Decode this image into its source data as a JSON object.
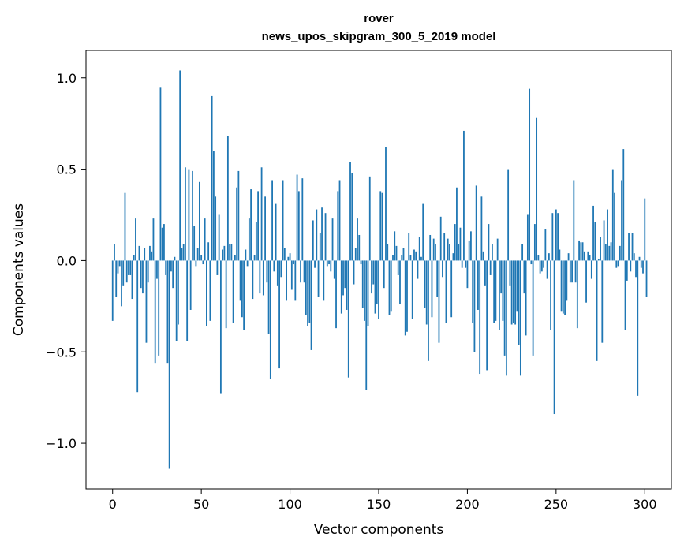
{
  "chart_data": {
    "type": "bar",
    "title_line1": "rover",
    "title_line2": "news_upos_skipgram_300_5_2019 model",
    "xlabel": "Vector components",
    "ylabel": "Components values",
    "xlim": [
      -15,
      315
    ],
    "ylim": [
      -1.25,
      1.15
    ],
    "x_ticks": [
      0,
      50,
      100,
      150,
      200,
      250,
      300
    ],
    "x_tick_labels": [
      "0",
      "50",
      "100",
      "150",
      "200",
      "250",
      "300"
    ],
    "y_ticks": [
      -1.0,
      -0.5,
      0.0,
      0.5,
      1.0
    ],
    "y_tick_labels": [
      "−1.0",
      "−0.5",
      "0.0",
      "0.5",
      "1.0"
    ],
    "bar_color": "#1f77b4",
    "grid": false,
    "legend": "none",
    "values": [
      -0.33,
      0.09,
      -0.2,
      -0.07,
      -0.03,
      -0.25,
      -0.14,
      0.37,
      -0.12,
      -0.08,
      -0.08,
      -0.21,
      0.03,
      0.23,
      -0.72,
      0.08,
      -0.15,
      -0.18,
      0.07,
      -0.45,
      -0.12,
      0.08,
      0.05,
      0.23,
      -0.56,
      -0.1,
      -0.52,
      0.95,
      0.18,
      0.2,
      -0.08,
      -0.56,
      -1.14,
      -0.06,
      -0.15,
      0.02,
      -0.44,
      -0.35,
      1.04,
      0.07,
      0.09,
      0.51,
      -0.44,
      0.5,
      -0.27,
      0.49,
      0.19,
      -0.03,
      0.07,
      0.43,
      0.03,
      -0.02,
      0.23,
      -0.36,
      0.1,
      -0.33,
      0.9,
      0.6,
      0.35,
      -0.08,
      0.25,
      -0.73,
      0.06,
      0.08,
      -0.37,
      0.68,
      0.09,
      0.09,
      -0.34,
      0.03,
      0.4,
      0.49,
      -0.22,
      -0.31,
      -0.38,
      0.06,
      -0.03,
      0.23,
      0.39,
      -0.21,
      0.03,
      0.21,
      0.38,
      -0.18,
      0.51,
      -0.19,
      0.35,
      -0.12,
      -0.4,
      -0.65,
      0.44,
      -0.06,
      0.31,
      -0.14,
      -0.59,
      -0.09,
      0.44,
      0.07,
      -0.22,
      0.02,
      0.04,
      -0.16,
      -0.02,
      -0.22,
      0.47,
      0.38,
      -0.12,
      0.45,
      -0.12,
      -0.3,
      -0.36,
      -0.34,
      -0.49,
      0.22,
      -0.04,
      0.28,
      -0.2,
      0.15,
      0.29,
      -0.22,
      0.26,
      -0.03,
      -0.02,
      -0.06,
      0.23,
      -0.1,
      -0.37,
      0.38,
      0.44,
      -0.29,
      -0.19,
      -0.15,
      -0.27,
      -0.64,
      0.54,
      0.48,
      -0.13,
      0.07,
      0.23,
      0.14,
      -0.02,
      -0.26,
      -0.33,
      -0.71,
      -0.36,
      0.46,
      -0.18,
      -0.13,
      -0.29,
      -0.24,
      -0.32,
      0.38,
      0.37,
      -0.15,
      0.62,
      0.09,
      -0.3,
      -0.28,
      0.03,
      0.16,
      0.08,
      -0.08,
      -0.24,
      0.03,
      0.07,
      -0.41,
      -0.39,
      0.15,
      0.03,
      -0.32,
      0.06,
      0.05,
      -0.1,
      0.13,
      0.02,
      0.31,
      -0.26,
      -0.35,
      -0.55,
      0.14,
      -0.31,
      0.12,
      0.09,
      -0.2,
      -0.45,
      0.24,
      -0.09,
      0.15,
      -0.34,
      0.12,
      0.09,
      -0.31,
      0.04,
      0.2,
      0.4,
      0.09,
      0.18,
      -0.04,
      0.71,
      -0.04,
      -0.15,
      0.11,
      0.16,
      -0.34,
      -0.5,
      0.41,
      -0.27,
      -0.62,
      0.35,
      0.05,
      -0.14,
      -0.6,
      0.2,
      -0.08,
      0.09,
      -0.34,
      -0.33,
      0.12,
      -0.38,
      -0.18,
      -0.33,
      -0.52,
      -0.63,
      0.5,
      -0.14,
      -0.35,
      -0.34,
      -0.35,
      -0.28,
      -0.46,
      -0.63,
      0.09,
      -0.18,
      -0.41,
      0.25,
      0.94,
      -0.02,
      -0.52,
      0.2,
      0.78,
      0.03,
      -0.07,
      -0.06,
      -0.04,
      0.17,
      -0.1,
      0.04,
      -0.38,
      0.26,
      -0.84,
      0.28,
      0.26,
      0.06,
      -0.28,
      -0.29,
      -0.3,
      -0.22,
      0.04,
      -0.12,
      -0.12,
      0.44,
      -0.12,
      -0.37,
      0.11,
      0.1,
      0.1,
      0.05,
      -0.23,
      0.05,
      0.03,
      -0.1,
      0.3,
      0.21,
      -0.55,
      0.01,
      0.13,
      -0.45,
      0.22,
      0.09,
      0.28,
      0.08,
      0.1,
      0.5,
      0.37,
      -0.04,
      -0.03,
      0.08,
      0.44,
      0.61,
      -0.38,
      -0.11,
      0.15,
      -0.06,
      0.15,
      0.04,
      -0.09,
      -0.74,
      0.02,
      -0.04,
      -0.07,
      0.34,
      -0.2
    ]
  }
}
